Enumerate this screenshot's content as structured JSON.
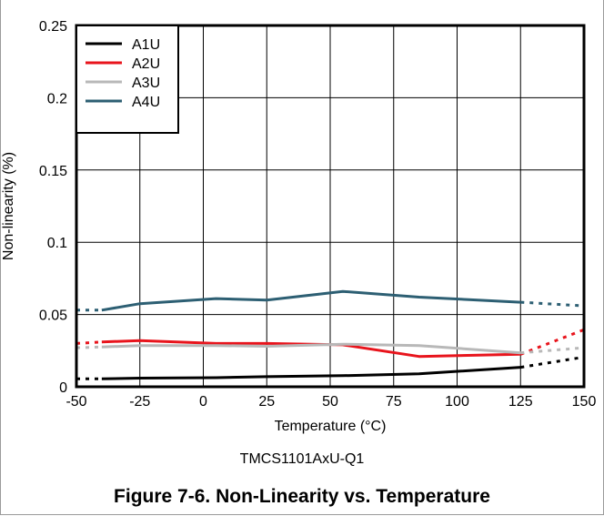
{
  "figure_caption": "Figure 7-6. Non-Linearity vs. Temperature",
  "chart_data": {
    "type": "line",
    "title": "",
    "subtitle": "TMCS1101AxU-Q1",
    "xlabel": "Temperature (°C)",
    "ylabel": "Non-linearity (%)",
    "xlim": [
      -50,
      150
    ],
    "ylim": [
      0,
      0.25
    ],
    "x_ticks": [
      "-50",
      "-25",
      "0",
      "25",
      "50",
      "75",
      "100",
      "125",
      "150"
    ],
    "y_ticks": [
      "0",
      "0.05",
      "0.1",
      "0.15",
      "0.2",
      "0.25"
    ],
    "x_tick_values": [
      -50,
      -25,
      0,
      25,
      50,
      75,
      100,
      125,
      150
    ],
    "y_tick_values": [
      0,
      0.05,
      0.1,
      0.15,
      0.2,
      0.25
    ],
    "grid": true,
    "legend_position": "top-left",
    "series": [
      {
        "name": "A1U",
        "color": "#000000",
        "points": [
          [
            -40,
            0.0055
          ],
          [
            -25,
            0.006
          ],
          [
            5,
            0.0063
          ],
          [
            25,
            0.007
          ],
          [
            55,
            0.0077
          ],
          [
            85,
            0.009
          ],
          [
            125,
            0.0135
          ]
        ],
        "extrapolated_below": [
          [
            -50,
            0.0055
          ],
          [
            -40,
            0.0055
          ]
        ],
        "extrapolated_above": [
          [
            125,
            0.0135
          ],
          [
            150,
            0.0205
          ]
        ]
      },
      {
        "name": "A2U",
        "color": "#e8141c",
        "points": [
          [
            -40,
            0.031
          ],
          [
            -25,
            0.032
          ],
          [
            5,
            0.03
          ],
          [
            25,
            0.03
          ],
          [
            55,
            0.029
          ],
          [
            85,
            0.021
          ],
          [
            125,
            0.0225
          ]
        ],
        "extrapolated_below": [
          [
            -50,
            0.03
          ],
          [
            -40,
            0.031
          ]
        ],
        "extrapolated_above": [
          [
            125,
            0.0225
          ],
          [
            150,
            0.0395
          ]
        ]
      },
      {
        "name": "A3U",
        "color": "#b8b8b8",
        "points": [
          [
            -40,
            0.0275
          ],
          [
            -25,
            0.0285
          ],
          [
            5,
            0.0285
          ],
          [
            25,
            0.028
          ],
          [
            55,
            0.0295
          ],
          [
            85,
            0.0285
          ],
          [
            125,
            0.0235
          ]
        ],
        "extrapolated_below": [
          [
            -50,
            0.027
          ],
          [
            -40,
            0.0275
          ]
        ],
        "extrapolated_above": [
          [
            125,
            0.0235
          ],
          [
            150,
            0.027
          ]
        ]
      },
      {
        "name": "A4U",
        "color": "#2d5f73",
        "points": [
          [
            -40,
            0.053
          ],
          [
            -25,
            0.0575
          ],
          [
            5,
            0.061
          ],
          [
            25,
            0.06
          ],
          [
            55,
            0.066
          ],
          [
            85,
            0.062
          ],
          [
            125,
            0.0585
          ]
        ],
        "extrapolated_below": [
          [
            -50,
            0.053
          ],
          [
            -40,
            0.053
          ]
        ],
        "extrapolated_above": [
          [
            125,
            0.0585
          ],
          [
            150,
            0.056
          ]
        ]
      }
    ]
  }
}
